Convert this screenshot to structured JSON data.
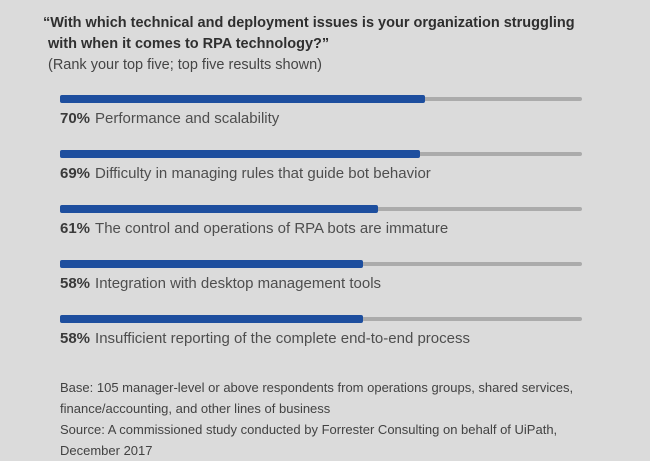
{
  "header": {
    "title_lines": [
      "“With which technical and deployment issues is your organization struggling",
      "with when it comes to RPA technology?”"
    ],
    "subtitle": "(Rank your top five; top five results shown)"
  },
  "bars": [
    {
      "pct_label": "70%",
      "value": 70,
      "label": "Performance and scalability"
    },
    {
      "pct_label": "69%",
      "value": 69,
      "label": "Difficulty in managing rules that guide bot behavior"
    },
    {
      "pct_label": "61%",
      "value": 61,
      "label": "The control and operations of RPA bots are immature"
    },
    {
      "pct_label": "58%",
      "value": 58,
      "label": "Integration with desktop management tools"
    },
    {
      "pct_label": "58%",
      "value": 58,
      "label": "Insufficient reporting of the complete end-to-end process"
    }
  ],
  "footer": {
    "lines": [
      "Base: 105 manager-level or above respondents from operations groups, shared services,",
      "finance/accounting, and other lines of business",
      "Source: A commissioned study conducted by Forrester Consulting on behalf of UiPath,",
      "December 2017"
    ]
  },
  "colors": {
    "background": "#dbdbdb",
    "bar_fill": "#1d4e9e",
    "bar_track": "#ababab"
  },
  "chart_data": {
    "type": "bar",
    "orientation": "horizontal",
    "title": "“With which technical and deployment issues is your organization struggling with when it comes to RPA technology?”",
    "subtitle": "(Rank your top five; top five results shown)",
    "categories": [
      "Performance and scalability",
      "Difficulty in managing rules that guide bot behavior",
      "The control and operations of RPA bots are immature",
      "Integration with desktop management tools",
      "Insufficient reporting of the complete end-to-end process"
    ],
    "values": [
      70,
      69,
      61,
      58,
      58
    ],
    "value_format": "percent",
    "xlim": [
      0,
      100
    ],
    "grid": false,
    "legend": false,
    "notes": [
      "Base: 105 manager-level or above respondents from operations groups, shared services, finance/accounting, and other lines of business",
      "Source: A commissioned study conducted by Forrester Consulting on behalf of UiPath, December 2017"
    ]
  }
}
